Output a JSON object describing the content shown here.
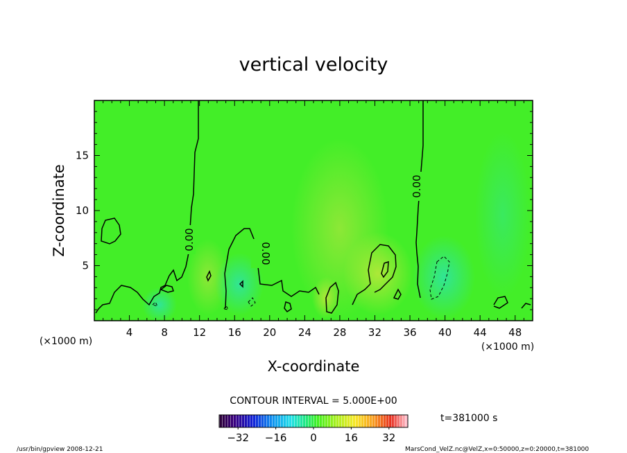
{
  "chart_data": {
    "type": "heatmap",
    "title": "vertical velocity",
    "xlabel": "X-coordinate",
    "ylabel": "Z-coordinate",
    "x_unit": "(×1000 m)",
    "x_ticks": [
      4,
      8,
      12,
      16,
      20,
      24,
      28,
      32,
      36,
      40,
      44,
      48
    ],
    "y_ticks": [
      5,
      10,
      15
    ],
    "xlim": [
      0,
      50
    ],
    "ylim": [
      0,
      20
    ],
    "contour_interval_label": "CONTOUR INTERVAL = 5.000E+00",
    "contour_label": "0.00",
    "time_label": "t=381000 s",
    "colorbar": {
      "min": -40,
      "max": 40,
      "ticks": [
        -32,
        -16,
        0,
        16,
        32
      ],
      "tick_labels": [
        "−32",
        "−16",
        "0",
        "16",
        "32"
      ]
    },
    "zero_contour_x_at_top": [
      11.9,
      37.1
    ],
    "footer_left": "/usr/bin/gpview   2008-12-21",
    "footer_right": "MarsCond_VelZ.nc@VelZ,x=0:50000,z=0:20000,t=381000"
  }
}
